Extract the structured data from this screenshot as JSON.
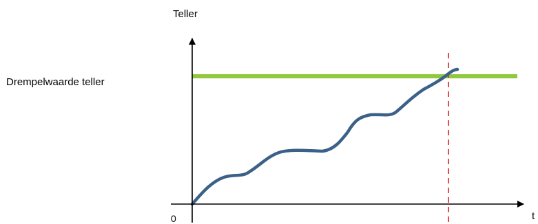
{
  "labels": {
    "y_axis": "Teller",
    "threshold": "Drempelwaarde teller",
    "origin": "0",
    "x_axis": "t"
  },
  "colors": {
    "axes": "#000000",
    "threshold_line": "#92c83e",
    "curve": "#3b6189",
    "crossing_marker": "#e02020"
  },
  "elements": {
    "threshold_line": "solid",
    "crossing_marker": "dashed"
  }
}
